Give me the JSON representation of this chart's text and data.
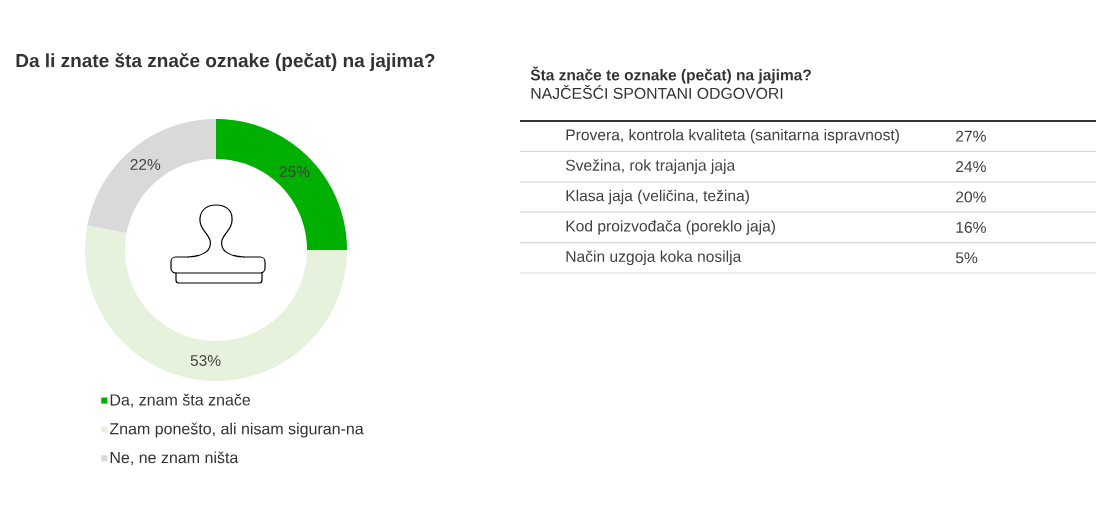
{
  "chart_data": [
    {
      "type": "donut",
      "title": "Da li znate šta znače oznake (pečat) na jajima?",
      "categories": [
        "Da, znam šta znače",
        "Znam ponešto, ali nisam siguran-na",
        "Ne, ne znam ništa"
      ],
      "values": [
        25,
        53,
        22
      ],
      "value_labels": [
        "25%",
        "53%",
        "22%"
      ],
      "colors": [
        "#00b000",
        "#e6f2dc",
        "#d9d9d9"
      ],
      "legend": "bottom"
    },
    {
      "type": "other",
      "title": "Šta znače te oznake (pečat) na jajima?",
      "subtitle": "NAJČEŠĆI SPONTANI ODGOVORI",
      "categories": [
        "Provera, kontrola kvaliteta (sanitarna ispravnost)",
        "Svežina, rok trajanja jaja",
        "Klasa jaja (veličina, težina)",
        "Kod proizvođača (poreklo jaja)",
        "Način uzgoja koka nosilja"
      ],
      "values": [
        27,
        24,
        20,
        16,
        5
      ],
      "value_labels": [
        "27%",
        "24%",
        "20%",
        "16%",
        "5%"
      ]
    }
  ]
}
